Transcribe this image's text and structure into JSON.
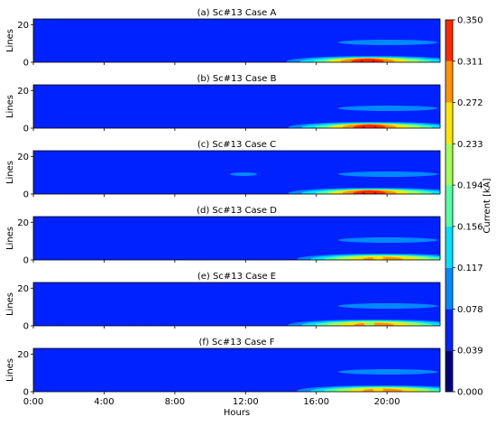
{
  "chart_data": {
    "type": "heatmap",
    "panels": [
      {
        "title": "(a) Sc#13 Case A",
        "peak_line": 1,
        "peak_hour": 18.9,
        "peak_value": 0.33
      },
      {
        "title": "(b) Sc#13 Case B",
        "peak_line": 1,
        "peak_hour": 19.0,
        "peak_value": 0.32
      },
      {
        "title": "(c) Sc#13 Case C",
        "peak_line": 1,
        "peak_hour": 19.0,
        "peak_value": 0.31
      },
      {
        "title": "(d) Sc#13 Case D",
        "peak_line": 1,
        "peak_hour": 19.5,
        "peak_value": 0.22
      },
      {
        "title": "(e) Sc#13 Case E",
        "peak_line": 1,
        "peak_hour": 19.0,
        "peak_value": 0.2
      },
      {
        "title": "(f) Sc#13 Case F",
        "peak_line": 1,
        "peak_hour": 19.5,
        "peak_value": 0.22
      }
    ],
    "ylabel": "Lines",
    "xlabel": "Hours",
    "ylim": [
      0,
      23
    ],
    "yticks": [
      "0",
      "20"
    ],
    "xlim": [
      0,
      23
    ],
    "xticks": [
      {
        "label": "0:00",
        "value": 0
      },
      {
        "label": "4:00",
        "value": 4
      },
      {
        "label": "8:00",
        "value": 8
      },
      {
        "label": "12:00",
        "value": 12
      },
      {
        "label": "16:00",
        "value": 16
      },
      {
        "label": "20:00",
        "value": 20
      }
    ],
    "colorbar": {
      "label": "Current [kA]",
      "levels": [
        "0.000",
        "0.039",
        "0.078",
        "0.117",
        "0.156",
        "0.194",
        "0.233",
        "0.272",
        "0.311",
        "0.350"
      ],
      "colors": [
        "#00007f",
        "#0022ff",
        "#0088ff",
        "#00e0ff",
        "#55ffa2",
        "#a2ff55",
        "#ffe600",
        "#ff9400",
        "#ff2a00",
        "#b80000"
      ]
    }
  }
}
